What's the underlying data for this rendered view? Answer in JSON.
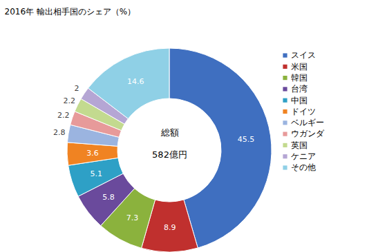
{
  "chart_data": {
    "type": "pie",
    "title": "2016年 輸出相手国のシェア（%）",
    "annotations": [
      "総額",
      "582億円"
    ],
    "categories": [
      "スイス",
      "米国",
      "韓国",
      "台湾",
      "中国",
      "ドイツ",
      "ベルギー",
      "ウガンダ",
      "英国",
      "ケニア",
      "その他"
    ],
    "values": [
      45.5,
      8.9,
      7.3,
      5.8,
      5.1,
      3.6,
      2.8,
      2.2,
      2.2,
      2.0,
      14.6
    ],
    "colors": [
      "#3f6fc0",
      "#c0302e",
      "#8bb23d",
      "#6a4a9c",
      "#2ea0c6",
      "#f08322",
      "#9bb4e0",
      "#e79a9a",
      "#c3da8f",
      "#b5a6d4",
      "#8fd0e6"
    ],
    "data_labels": true,
    "legend": "right"
  }
}
